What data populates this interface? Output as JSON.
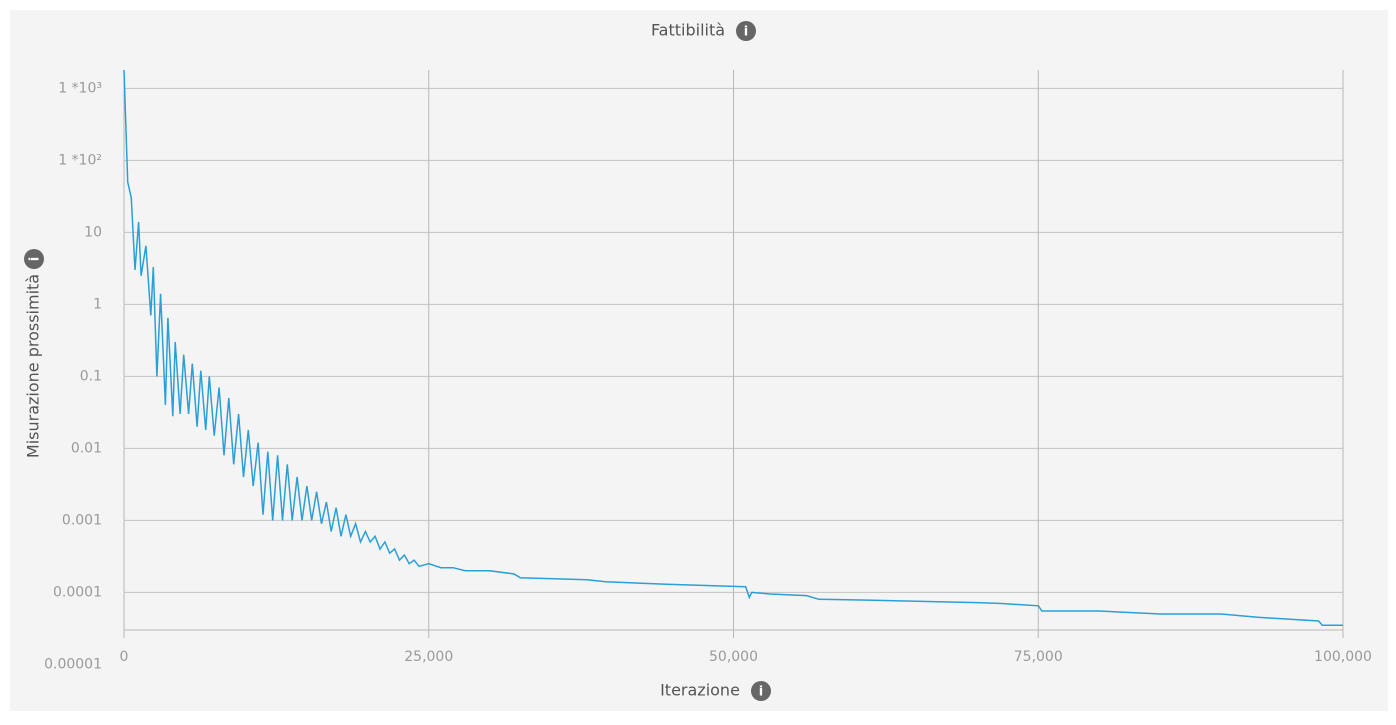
{
  "chart_data": {
    "type": "line",
    "title": "Fattibilità",
    "x_label": "Iterazione",
    "y_label": "Misurazione prossimità",
    "log_y": true,
    "grid": true,
    "xlim": [
      0,
      100000
    ],
    "xticks": [
      0,
      {
        "value": 25000,
        "label": "25,000"
      },
      {
        "value": 50000,
        "label": "50,000"
      },
      {
        "value": 75000,
        "label": "75,000"
      },
      {
        "value": 100000,
        "label": "100,000"
      }
    ],
    "ylim": [
      3e-05,
      1800
    ],
    "yticks": [
      {
        "value": 1e-05,
        "label": "0.00001"
      },
      0.0001,
      0.001,
      0.01,
      0.1,
      1,
      10,
      {
        "value": 100,
        "label": "1 *10²"
      },
      {
        "value": 1000,
        "label": "1 *10³"
      }
    ],
    "series": [
      {
        "name": "Fattibilità",
        "color": "#2a9fd8",
        "x": [
          0,
          300,
          600,
          900,
          1200,
          1400,
          1800,
          2200,
          2400,
          2700,
          3000,
          3400,
          3600,
          4000,
          4200,
          4600,
          4900,
          5300,
          5600,
          6000,
          6300,
          6700,
          7000,
          7400,
          7800,
          8200,
          8600,
          9000,
          9400,
          9800,
          10200,
          10600,
          11000,
          11400,
          11800,
          12200,
          12600,
          13000,
          13400,
          13800,
          14200,
          14600,
          15000,
          15400,
          15800,
          16200,
          16600,
          17000,
          17400,
          17800,
          18200,
          18600,
          19000,
          19400,
          19800,
          20200,
          20600,
          21000,
          21400,
          21800,
          22200,
          22600,
          23000,
          23400,
          23800,
          24200,
          25000,
          26000,
          27000,
          28000,
          30000,
          32000,
          32500,
          38000,
          39500,
          44500,
          51000,
          51300,
          51500,
          53000,
          56000,
          57000,
          61000,
          65000,
          70000,
          72000,
          75000,
          75300,
          80000,
          85000,
          90000,
          93000,
          98000,
          98300,
          100000
        ],
        "values": [
          1800,
          50,
          30,
          3,
          14,
          2.5,
          6.5,
          0.7,
          3.3,
          0.1,
          1.4,
          0.04,
          0.65,
          0.028,
          0.3,
          0.03,
          0.2,
          0.03,
          0.15,
          0.02,
          0.12,
          0.018,
          0.1,
          0.015,
          0.07,
          0.008,
          0.05,
          0.006,
          0.03,
          0.004,
          0.018,
          0.003,
          0.012,
          0.0012,
          0.009,
          0.001,
          0.008,
          0.001,
          0.006,
          0.001,
          0.004,
          0.001,
          0.003,
          0.001,
          0.0025,
          0.0009,
          0.0018,
          0.0007,
          0.0015,
          0.0006,
          0.0012,
          0.0006,
          0.0009,
          0.0005,
          0.0007,
          0.0005,
          0.0006,
          0.0004,
          0.0005,
          0.00035,
          0.0004,
          0.00028,
          0.00033,
          0.00025,
          0.00028,
          0.00023,
          0.00025,
          0.00022,
          0.00022,
          0.0002,
          0.0002,
          0.00018,
          0.00016,
          0.00015,
          0.00014,
          0.00013,
          0.00012,
          8.5e-05,
          0.0001,
          9.5e-05,
          9e-05,
          8e-05,
          7.8e-05,
          7.5e-05,
          7.2e-05,
          7e-05,
          6.5e-05,
          5.5e-05,
          5.5e-05,
          5e-05,
          5e-05,
          4.5e-05,
          4e-05,
          3.5e-05,
          3.5e-05
        ]
      }
    ]
  }
}
